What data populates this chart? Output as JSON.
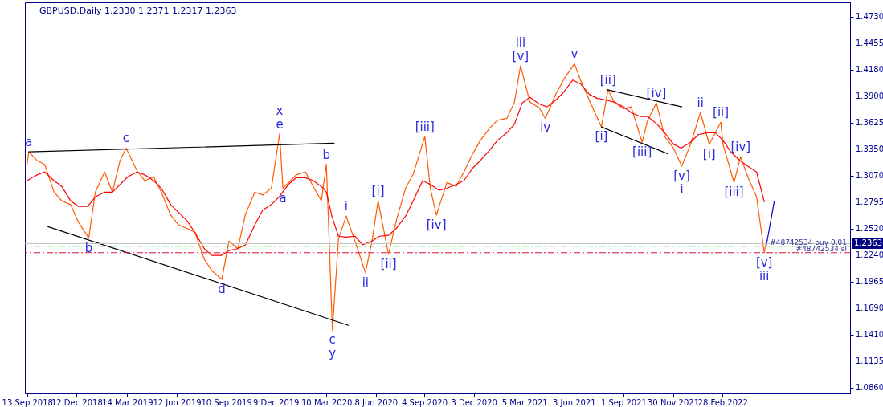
{
  "chart_data": {
    "type": "line",
    "title": "GBPUSD,Daily  1.2330 1.2371 1.2317 1.2363",
    "xlim": [
      "2018-09-09",
      "2022-10-18"
    ],
    "xticks": [
      {
        "value": "2018-09-13",
        "label": "13 Sep 2018"
      },
      {
        "value": "2018-12-12",
        "label": "12 Dec 2018"
      },
      {
        "value": "2019-03-14",
        "label": "14 Mar 2019"
      },
      {
        "value": "2019-06-12",
        "label": "12 Jun 2019"
      },
      {
        "value": "2019-09-10",
        "label": "10 Sep 2019"
      },
      {
        "value": "2019-12-09",
        "label": "9 Dec 2019"
      },
      {
        "value": "2020-03-10",
        "label": "10 Mar 2020"
      },
      {
        "value": "2020-06-08",
        "label": "8 Jun 2020"
      },
      {
        "value": "2020-09-04",
        "label": "4 Sep 2020"
      },
      {
        "value": "2020-12-03",
        "label": "3 Dec 2020"
      },
      {
        "value": "2021-03-05",
        "label": "5 Mar 2021"
      },
      {
        "value": "2021-06-03",
        "label": "3 Jun 2021"
      },
      {
        "value": "2021-09-01",
        "label": "1 Sep 2021"
      },
      {
        "value": "2021-11-30",
        "label": "30 Nov 2021"
      },
      {
        "value": "2022-02-28",
        "label": "28 Feb 2022"
      }
    ],
    "ylim": [
      1.08,
      1.488
    ],
    "yticks": [
      {
        "value": 1.086,
        "label": "1.0860"
      },
      {
        "value": 1.1135,
        "label": "1.1135"
      },
      {
        "value": 1.141,
        "label": "1.1410"
      },
      {
        "value": 1.169,
        "label": "1.1690"
      },
      {
        "value": 1.1965,
        "label": "1.1965"
      },
      {
        "value": 1.224,
        "label": "1.2240"
      },
      {
        "value": 1.252,
        "label": "1.2520"
      },
      {
        "value": 1.2795,
        "label": "1.2795"
      },
      {
        "value": 1.307,
        "label": "1.3070"
      },
      {
        "value": 1.335,
        "label": "1.3350"
      },
      {
        "value": 1.3625,
        "label": "1.3625"
      },
      {
        "value": 1.39,
        "label": "1.3900"
      },
      {
        "value": 1.418,
        "label": "1.4180"
      },
      {
        "value": 1.4455,
        "label": "1.4455"
      },
      {
        "value": 1.473,
        "label": "1.4730"
      }
    ],
    "grid": false,
    "series": [
      {
        "color": "#ff5a00",
        "x": [
          "2018-09-13",
          "2018-09-16",
          "2018-10-01",
          "2018-10-15",
          "2018-11-01",
          "2018-11-15",
          "2018-12-01",
          "2018-12-15",
          "2019-01-03",
          "2019-01-15",
          "2019-02-01",
          "2019-02-15",
          "2019-03-01",
          "2019-03-12",
          "2019-04-01",
          "2019-04-15",
          "2019-05-01",
          "2019-05-15",
          "2019-06-01",
          "2019-06-15",
          "2019-07-01",
          "2019-07-15",
          "2019-08-01",
          "2019-08-15",
          "2019-09-02",
          "2019-09-15",
          "2019-10-01",
          "2019-10-15",
          "2019-11-01",
          "2019-11-15",
          "2019-12-01",
          "2019-12-16",
          "2019-12-22",
          "2020-01-15",
          "2020-02-01",
          "2020-02-15",
          "2020-03-01",
          "2020-03-10",
          "2020-03-21",
          "2020-04-01",
          "2020-04-15",
          "2020-05-01",
          "2020-05-20",
          "2020-06-01",
          "2020-06-12",
          "2020-07-01",
          "2020-07-15",
          "2020-08-01",
          "2020-08-15",
          "2020-09-05",
          "2020-09-15",
          "2020-09-26",
          "2020-10-15",
          "2020-11-01",
          "2020-11-15",
          "2020-12-01",
          "2020-12-15",
          "2021-01-01",
          "2021-01-15",
          "2021-02-01",
          "2021-02-15",
          "2021-02-26",
          "2021-03-15",
          "2021-04-01",
          "2021-04-12",
          "2021-05-01",
          "2021-05-15",
          "2021-06-04",
          "2021-06-15",
          "2021-07-01",
          "2021-07-23",
          "2021-08-04",
          "2021-08-15",
          "2021-09-01",
          "2021-09-15",
          "2021-10-05",
          "2021-10-15",
          "2021-10-31",
          "2021-11-15",
          "2021-12-01",
          "2021-12-16",
          "2022-01-01",
          "2022-01-19",
          "2022-02-04",
          "2022-02-25",
          "2022-03-01",
          "2022-03-21",
          "2022-04-02",
          "2022-04-15",
          "2022-05-01",
          "2022-05-15",
          "2022-05-18"
        ],
        "values": [
          1.319,
          1.332,
          1.323,
          1.319,
          1.29,
          1.281,
          1.277,
          1.259,
          1.242,
          1.29,
          1.311,
          1.29,
          1.323,
          1.336,
          1.312,
          1.302,
          1.306,
          1.29,
          1.266,
          1.256,
          1.252,
          1.248,
          1.22,
          1.208,
          1.199,
          1.239,
          1.231,
          1.267,
          1.29,
          1.287,
          1.294,
          1.351,
          1.294,
          1.308,
          1.311,
          1.296,
          1.281,
          1.319,
          1.146,
          1.241,
          1.265,
          1.239,
          1.206,
          1.239,
          1.281,
          1.225,
          1.26,
          1.294,
          1.309,
          1.348,
          1.294,
          1.266,
          1.3,
          1.296,
          1.311,
          1.33,
          1.344,
          1.357,
          1.365,
          1.367,
          1.384,
          1.422,
          1.384,
          1.378,
          1.367,
          1.392,
          1.407,
          1.424,
          1.407,
          1.386,
          1.358,
          1.397,
          1.384,
          1.377,
          1.379,
          1.342,
          1.365,
          1.383,
          1.348,
          1.336,
          1.317,
          1.34,
          1.373,
          1.34,
          1.363,
          1.34,
          1.3,
          1.327,
          1.306,
          1.285,
          1.227,
          1.236
        ]
      },
      {
        "color": "#ff0000",
        "x": [
          "2018-09-13",
          "2018-10-01",
          "2018-10-15",
          "2018-11-01",
          "2018-11-15",
          "2018-12-01",
          "2018-12-15",
          "2019-01-01",
          "2019-01-15",
          "2019-02-01",
          "2019-02-15",
          "2019-03-01",
          "2019-03-15",
          "2019-04-01",
          "2019-04-15",
          "2019-05-01",
          "2019-05-15",
          "2019-06-01",
          "2019-06-15",
          "2019-07-01",
          "2019-07-15",
          "2019-08-01",
          "2019-08-15",
          "2019-09-01",
          "2019-09-15",
          "2019-10-01",
          "2019-10-15",
          "2019-11-01",
          "2019-11-15",
          "2019-12-01",
          "2019-12-15",
          "2020-01-01",
          "2020-01-15",
          "2020-02-01",
          "2020-02-15",
          "2020-03-01",
          "2020-03-10",
          "2020-03-20",
          "2020-04-01",
          "2020-04-15",
          "2020-05-01",
          "2020-05-15",
          "2020-06-01",
          "2020-06-15",
          "2020-07-01",
          "2020-07-15",
          "2020-08-01",
          "2020-08-15",
          "2020-09-01",
          "2020-09-15",
          "2020-10-01",
          "2020-10-15",
          "2020-11-01",
          "2020-11-15",
          "2020-12-01",
          "2020-12-15",
          "2021-01-01",
          "2021-01-15",
          "2021-02-01",
          "2021-02-15",
          "2021-03-01",
          "2021-03-15",
          "2021-04-01",
          "2021-04-15",
          "2021-05-01",
          "2021-05-15",
          "2021-06-01",
          "2021-06-15",
          "2021-07-01",
          "2021-07-15",
          "2021-08-01",
          "2021-08-15",
          "2021-09-01",
          "2021-09-15",
          "2021-10-01",
          "2021-10-15",
          "2021-11-01",
          "2021-11-15",
          "2021-12-01",
          "2021-12-15",
          "2022-01-01",
          "2022-01-15",
          "2022-02-01",
          "2022-02-15",
          "2022-03-01",
          "2022-03-15",
          "2022-04-01",
          "2022-04-15",
          "2022-05-01",
          "2022-05-15"
        ],
        "values": [
          1.302,
          1.308,
          1.311,
          1.302,
          1.296,
          1.281,
          1.275,
          1.275,
          1.285,
          1.29,
          1.29,
          1.298,
          1.306,
          1.311,
          1.308,
          1.302,
          1.294,
          1.277,
          1.269,
          1.26,
          1.248,
          1.231,
          1.224,
          1.224,
          1.229,
          1.231,
          1.235,
          1.256,
          1.271,
          1.277,
          1.285,
          1.298,
          1.305,
          1.305,
          1.302,
          1.296,
          1.29,
          1.265,
          1.244,
          1.243,
          1.244,
          1.235,
          1.239,
          1.244,
          1.245,
          1.252,
          1.265,
          1.281,
          1.302,
          1.298,
          1.292,
          1.294,
          1.298,
          1.302,
          1.315,
          1.323,
          1.334,
          1.344,
          1.352,
          1.361,
          1.383,
          1.389,
          1.382,
          1.379,
          1.386,
          1.394,
          1.407,
          1.403,
          1.392,
          1.388,
          1.386,
          1.384,
          1.379,
          1.373,
          1.369,
          1.369,
          1.361,
          1.352,
          1.34,
          1.336,
          1.342,
          1.35,
          1.352,
          1.352,
          1.344,
          1.332,
          1.323,
          1.317,
          1.311,
          1.28
        ]
      },
      {
        "color": "#000000",
        "x": [
          "2018-09-16",
          "2020-03-24"
        ],
        "values": [
          1.332,
          1.341
        ]
      },
      {
        "color": "#000000",
        "x": [
          "2018-10-21",
          "2020-04-19"
        ],
        "values": [
          1.254,
          1.151
        ]
      },
      {
        "color": "#000000",
        "x": [
          "2021-08-02",
          "2021-12-16"
        ],
        "values": [
          1.397,
          1.379
        ]
      },
      {
        "color": "#000000",
        "x": [
          "2021-07-23",
          "2021-11-21"
        ],
        "values": [
          1.358,
          1.33
        ]
      },
      {
        "color": "#0000cc",
        "x": [
          "2022-05-19",
          "2022-06-02"
        ],
        "values": [
          1.235,
          1.28
        ]
      }
    ],
    "ref_lines": [
      {
        "axis": "y",
        "value": 1.2363,
        "label": "1.2363",
        "color": "#c0c0c0",
        "line_style": "solid"
      },
      {
        "axis": "y",
        "value": 1.2335,
        "label": "#48742534 buy 0.01",
        "color": "#33cc33",
        "line_style": "dashed"
      },
      {
        "axis": "y",
        "value": 1.2268,
        "label": "#48742534 sl",
        "color": "#dc143c",
        "line_style": "dashed"
      }
    ],
    "annotations": [
      {
        "text": "a",
        "x": "2018-09-16",
        "y": 1.332
      },
      {
        "text": "b",
        "x": "2019-01-03",
        "y": 1.242
      },
      {
        "text": "c",
        "x": "2019-03-12",
        "y": 1.336
      },
      {
        "text": "d",
        "x": "2019-09-02",
        "y": 1.199
      },
      {
        "text": "x",
        "x": "2019-12-16",
        "y": 1.351
      },
      {
        "text": "e",
        "x": "2019-12-16",
        "y": 1.351
      },
      {
        "text": "a",
        "x": "2019-12-22",
        "y": 1.294
      },
      {
        "text": "b",
        "x": "2020-03-10",
        "y": 1.319
      },
      {
        "text": "c",
        "x": "2020-03-21",
        "y": 1.146
      },
      {
        "text": "y",
        "x": "2020-03-21",
        "y": 1.146
      },
      {
        "text": "i",
        "x": "2020-04-15",
        "y": 1.265
      },
      {
        "text": "ii",
        "x": "2020-05-20",
        "y": 1.206
      },
      {
        "text": "[i]",
        "x": "2020-06-12",
        "y": 1.281
      },
      {
        "text": "[ii]",
        "x": "2020-07-01",
        "y": 1.225
      },
      {
        "text": "[iii]",
        "x": "2020-09-05",
        "y": 1.348
      },
      {
        "text": "[iv]",
        "x": "2020-09-26",
        "y": 1.266
      },
      {
        "text": "iii",
        "x": "2021-02-26",
        "y": 1.422
      },
      {
        "text": "[v]",
        "x": "2021-02-26",
        "y": 1.422
      },
      {
        "text": "iv",
        "x": "2021-04-12",
        "y": 1.367
      },
      {
        "text": "v",
        "x": "2021-06-04",
        "y": 1.424
      },
      {
        "text": "[i]",
        "x": "2021-07-23",
        "y": 1.358
      },
      {
        "text": "[ii]",
        "x": "2021-08-04",
        "y": 1.397
      },
      {
        "text": "[iii]",
        "x": "2021-10-05",
        "y": 1.342
      },
      {
        "text": "[iv]",
        "x": "2021-10-31",
        "y": 1.383
      },
      {
        "text": "[v]",
        "x": "2021-12-16",
        "y": 1.317
      },
      {
        "text": "i",
        "x": "2021-12-16",
        "y": 1.317
      },
      {
        "text": "ii",
        "x": "2022-01-19",
        "y": 1.373
      },
      {
        "text": "[i]",
        "x": "2022-02-04",
        "y": 1.34
      },
      {
        "text": "[ii]",
        "x": "2022-02-25",
        "y": 1.363
      },
      {
        "text": "[iii]",
        "x": "2022-03-21",
        "y": 1.3
      },
      {
        "text": "[iv]",
        "x": "2022-04-02",
        "y": 1.327
      },
      {
        "text": "[v]",
        "x": "2022-05-15",
        "y": 1.227
      },
      {
        "text": "iii",
        "x": "2022-05-15",
        "y": 1.227
      }
    ]
  }
}
